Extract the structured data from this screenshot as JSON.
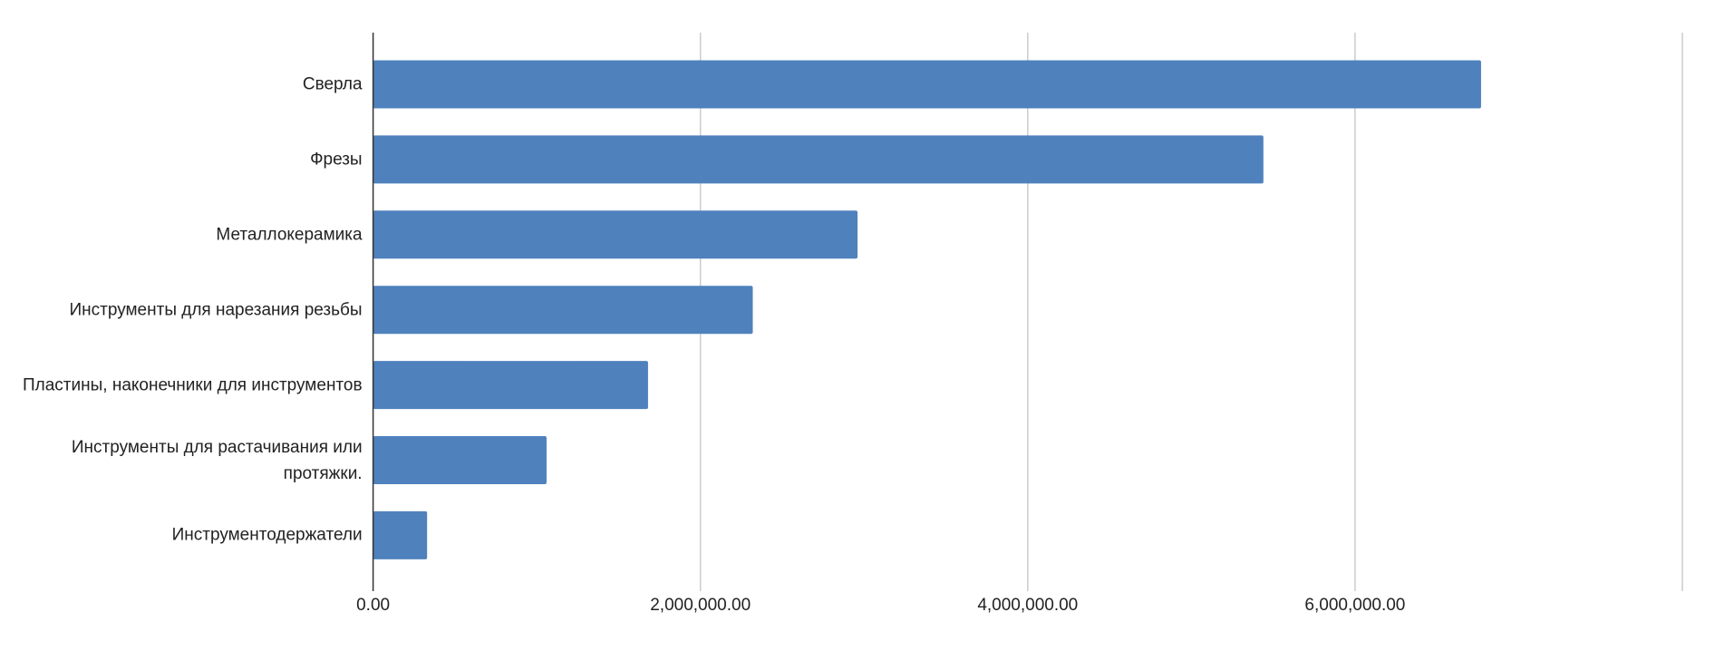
{
  "chart_data": {
    "type": "bar",
    "orientation": "horizontal",
    "categories": [
      "Сверла",
      "Фрезы",
      "Металлокерамика",
      "Инструменты для нарезания резьбы",
      "Пластины, наконечники для инструментов",
      "Инструменты для растачивания или протяжки.",
      "Инструментодержатели"
    ],
    "values": [
      6770000,
      5440000,
      2960000,
      2320000,
      1680000,
      1060000,
      330000
    ],
    "color": "#4f81bd",
    "xlim": [
      0,
      8000000
    ],
    "xticks": [
      {
        "value": 0,
        "label": "0.00"
      },
      {
        "value": 2000000,
        "label": "2,000,000.00"
      },
      {
        "value": 4000000,
        "label": "4,000,000.00"
      },
      {
        "value": 6000000,
        "label": "6,000,000.00"
      }
    ],
    "grid": true
  }
}
